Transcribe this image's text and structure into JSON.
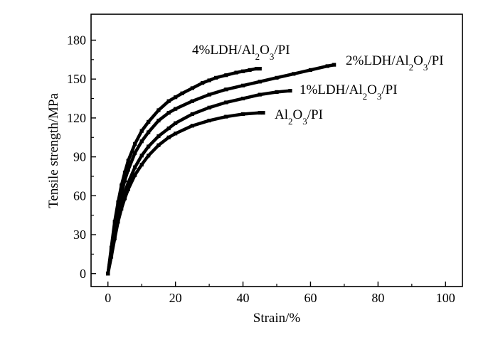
{
  "chart_data": {
    "type": "line",
    "xlabel": "Strain/%",
    "ylabel": "Tensile strength/MPa",
    "xlim": [
      -5,
      105
    ],
    "ylim": [
      -10,
      200
    ],
    "x_ticks": [
      "0",
      "20",
      "40",
      "60",
      "80",
      "100"
    ],
    "y_ticks": [
      "0",
      "30",
      "60",
      "90",
      "120",
      "150",
      "180"
    ],
    "grid": false,
    "legend": "inline labels at line ends",
    "series": [
      {
        "name": "4%LDH/Al2O3/PI",
        "label_parts": [
          [
            "4%LDH/Al",
            0
          ],
          [
            "2",
            1
          ],
          [
            "O",
            0
          ],
          [
            "3",
            1
          ],
          [
            "/PI",
            0
          ]
        ],
        "x": [
          0,
          1,
          2,
          3,
          4,
          5,
          6,
          8,
          10,
          12,
          15,
          18,
          20,
          22,
          25,
          28,
          30,
          32,
          35,
          38,
          40,
          42,
          44,
          45
        ],
        "y": [
          0,
          20,
          40,
          55,
          68,
          78,
          87,
          100,
          110,
          117,
          126,
          133,
          136,
          139,
          143,
          147,
          149,
          151,
          153,
          155,
          156,
          157,
          158,
          158
        ]
      },
      {
        "name": "2%LDH/Al2O3/PI",
        "label_parts": [
          [
            "2%LDH/Al",
            0
          ],
          [
            "2",
            1
          ],
          [
            "O",
            0
          ],
          [
            "3",
            1
          ],
          [
            "/PI",
            0
          ]
        ],
        "x": [
          0,
          1,
          2,
          3,
          4,
          5,
          6,
          8,
          10,
          12,
          15,
          18,
          20,
          25,
          30,
          35,
          40,
          45,
          50,
          55,
          60,
          65,
          67
        ],
        "y": [
          0,
          18,
          36,
          50,
          62,
          72,
          80,
          93,
          102,
          109,
          118,
          124,
          127,
          133,
          138,
          142,
          145,
          148,
          151,
          154,
          157,
          160,
          161
        ]
      },
      {
        "name": "1%LDH/Al2O3/PI",
        "label_parts": [
          [
            "1%LDH/Al",
            0
          ],
          [
            "2",
            1
          ],
          [
            "O",
            0
          ],
          [
            "3",
            1
          ],
          [
            "/PI",
            0
          ]
        ],
        "x": [
          0,
          1,
          2,
          3,
          4,
          5,
          6,
          8,
          10,
          12,
          15,
          18,
          20,
          25,
          30,
          35,
          40,
          45,
          50,
          54
        ],
        "y": [
          0,
          15,
          30,
          43,
          54,
          63,
          70,
          82,
          91,
          98,
          106,
          112,
          116,
          123,
          128,
          132,
          135,
          138,
          140,
          141
        ]
      },
      {
        "name": "Al2O3/PI",
        "label_parts": [
          [
            "Al",
            0
          ],
          [
            "2",
            1
          ],
          [
            "O",
            0
          ],
          [
            "3",
            1
          ],
          [
            "/PI",
            0
          ]
        ],
        "x": [
          0,
          1,
          2,
          3,
          4,
          5,
          6,
          8,
          10,
          12,
          15,
          18,
          20,
          25,
          30,
          35,
          40,
          45,
          46
        ],
        "y": [
          0,
          13,
          27,
          40,
          50,
          58,
          65,
          76,
          84,
          91,
          99,
          105,
          108,
          114,
          118,
          121,
          123,
          124,
          124
        ]
      }
    ]
  }
}
